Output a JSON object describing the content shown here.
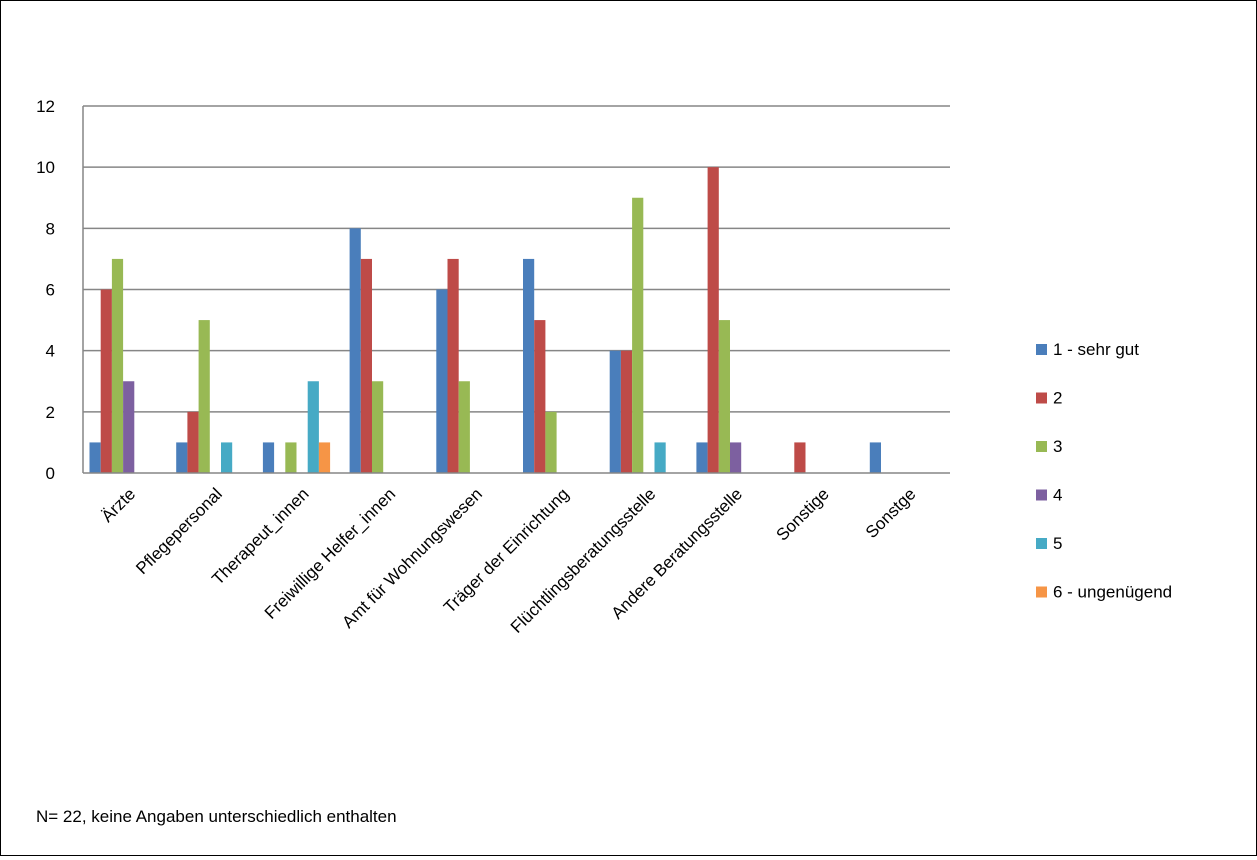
{
  "chart_data": {
    "type": "bar",
    "title": "",
    "xlabel": "",
    "ylabel": "",
    "ylim": [
      0,
      12
    ],
    "yticks": [
      0,
      2,
      4,
      6,
      8,
      10,
      12
    ],
    "grid": true,
    "legend_position": "right",
    "categories": [
      "Ärzte",
      "Pflegepersonal",
      "Therapeut_innen",
      "Freiwillige Helfer_innen",
      "Amt für Wohnungswesen",
      "Träger der Einrichtung",
      "Flüchtlingsberatungsstelle",
      "Andere Beratungsstelle",
      "Sonstige",
      "Sonstge"
    ],
    "series": [
      {
        "name": "1 - sehr gut",
        "color": "#4a7ebb",
        "values": [
          1,
          1,
          1,
          8,
          6,
          7,
          4,
          1,
          0,
          1
        ]
      },
      {
        "name": "2",
        "color": "#be4b48",
        "values": [
          6,
          2,
          0,
          7,
          7,
          5,
          4,
          10,
          1,
          0
        ]
      },
      {
        "name": "3",
        "color": "#98b954",
        "values": [
          7,
          5,
          1,
          3,
          3,
          2,
          9,
          5,
          0,
          0
        ]
      },
      {
        "name": "4",
        "color": "#7d60a0",
        "values": [
          3,
          0,
          0,
          0,
          0,
          0,
          0,
          1,
          0,
          0
        ]
      },
      {
        "name": "5",
        "color": "#46aac5",
        "values": [
          0,
          1,
          3,
          0,
          0,
          0,
          1,
          0,
          0,
          0
        ]
      },
      {
        "name": "6 - ungenügend",
        "color": "#f69546",
        "values": [
          0,
          0,
          1,
          0,
          0,
          0,
          0,
          0,
          0,
          0
        ]
      }
    ]
  },
  "footnote": "N= 22, keine Angaben unterschiedlich enthalten"
}
